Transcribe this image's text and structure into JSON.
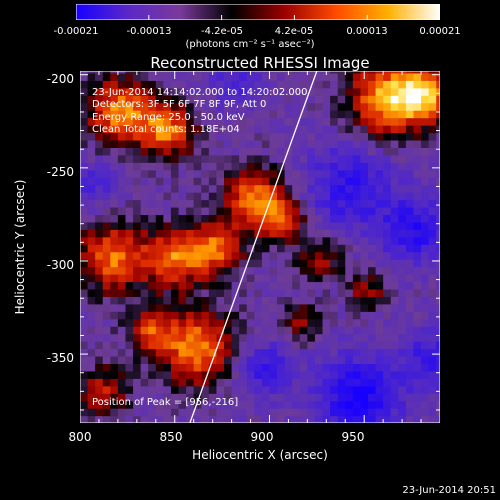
{
  "colorbar": {
    "ticks": [
      "-0.00021",
      "-0.00013",
      "-4.2e-05",
      "4.2e-05",
      "0.00013",
      "0.00021"
    ],
    "units": "(photons cm⁻² s⁻¹ asec⁻²)",
    "colors": [
      "#1800ff",
      "#5a28c8",
      "#7a3a9a",
      "#000000",
      "#9a0000",
      "#ff4a00",
      "#ffb000",
      "#ffffff"
    ]
  },
  "header": {
    "title": "Reconstructed RHESSI Image"
  },
  "annotations": {
    "time_range": "23-Jun-2014 14:14:02.000 to 14:20:02.000",
    "detectors": "Detectors: 3F 5F 6F 7F 8F 9F, Att 0",
    "energy": "Energy Range: 25.0 - 50.0 keV",
    "clean": "Clean    Total counts: 1.18E+04",
    "peak": "Position of Peak = [956,-216]"
  },
  "footer": {
    "timestamp": "23-Jun-2014 20:51"
  },
  "chart_data": {
    "type": "heatmap",
    "title": "Reconstructed RHESSI Image",
    "xlabel": "Heliocentric X (arcsec)",
    "ylabel": "Heliocentric Y (arcsec)",
    "xlim": [
      800,
      990
    ],
    "ylim": [
      -387,
      -198
    ],
    "xticks": [
      "800",
      "850",
      "900",
      "950"
    ],
    "xtick_values": [
      800,
      850,
      900,
      950
    ],
    "yticks": [
      "-200",
      "-250",
      "-300",
      "-350"
    ],
    "ytick_values": [
      -200,
      -250,
      -300,
      -350
    ],
    "colorbar_range": [
      -0.00021,
      0.00021
    ],
    "limb_line": [
      [
        858,
        -387
      ],
      [
        925,
        -198
      ]
    ],
    "bright_regions": [
      {
        "x": 820,
        "y": -222,
        "r": 18,
        "level": 0.9
      },
      {
        "x": 845,
        "y": -232,
        "r": 14,
        "level": 0.8
      },
      {
        "x": 890,
        "y": -268,
        "r": 16,
        "level": 0.85
      },
      {
        "x": 905,
        "y": -280,
        "r": 12,
        "level": 0.7
      },
      {
        "x": 960,
        "y": -215,
        "r": 20,
        "level": 1.0
      },
      {
        "x": 980,
        "y": -212,
        "r": 14,
        "level": 0.9
      },
      {
        "x": 815,
        "y": -300,
        "r": 18,
        "level": 0.85
      },
      {
        "x": 848,
        "y": -300,
        "r": 16,
        "level": 0.8
      },
      {
        "x": 870,
        "y": -295,
        "r": 14,
        "level": 0.75
      },
      {
        "x": 860,
        "y": -348,
        "r": 20,
        "level": 0.9
      },
      {
        "x": 835,
        "y": -340,
        "r": 12,
        "level": 0.6
      },
      {
        "x": 810,
        "y": -372,
        "r": 14,
        "level": 0.55
      },
      {
        "x": 925,
        "y": -300,
        "r": 12,
        "level": 0.5
      },
      {
        "x": 950,
        "y": -318,
        "r": 10,
        "level": 0.45
      },
      {
        "x": 915,
        "y": -335,
        "r": 10,
        "level": 0.45
      }
    ],
    "dim_regions": [
      {
        "x": 940,
        "y": -262,
        "r": 24,
        "level": -0.5
      },
      {
        "x": 975,
        "y": -285,
        "r": 18,
        "level": -0.55
      },
      {
        "x": 945,
        "y": -375,
        "r": 22,
        "level": -0.7
      },
      {
        "x": 895,
        "y": -360,
        "r": 16,
        "level": -0.45
      },
      {
        "x": 985,
        "y": -355,
        "r": 16,
        "level": -0.5
      },
      {
        "x": 880,
        "y": -205,
        "r": 14,
        "level": -0.35
      },
      {
        "x": 805,
        "y": -260,
        "r": 14,
        "level": -0.3
      }
    ]
  }
}
